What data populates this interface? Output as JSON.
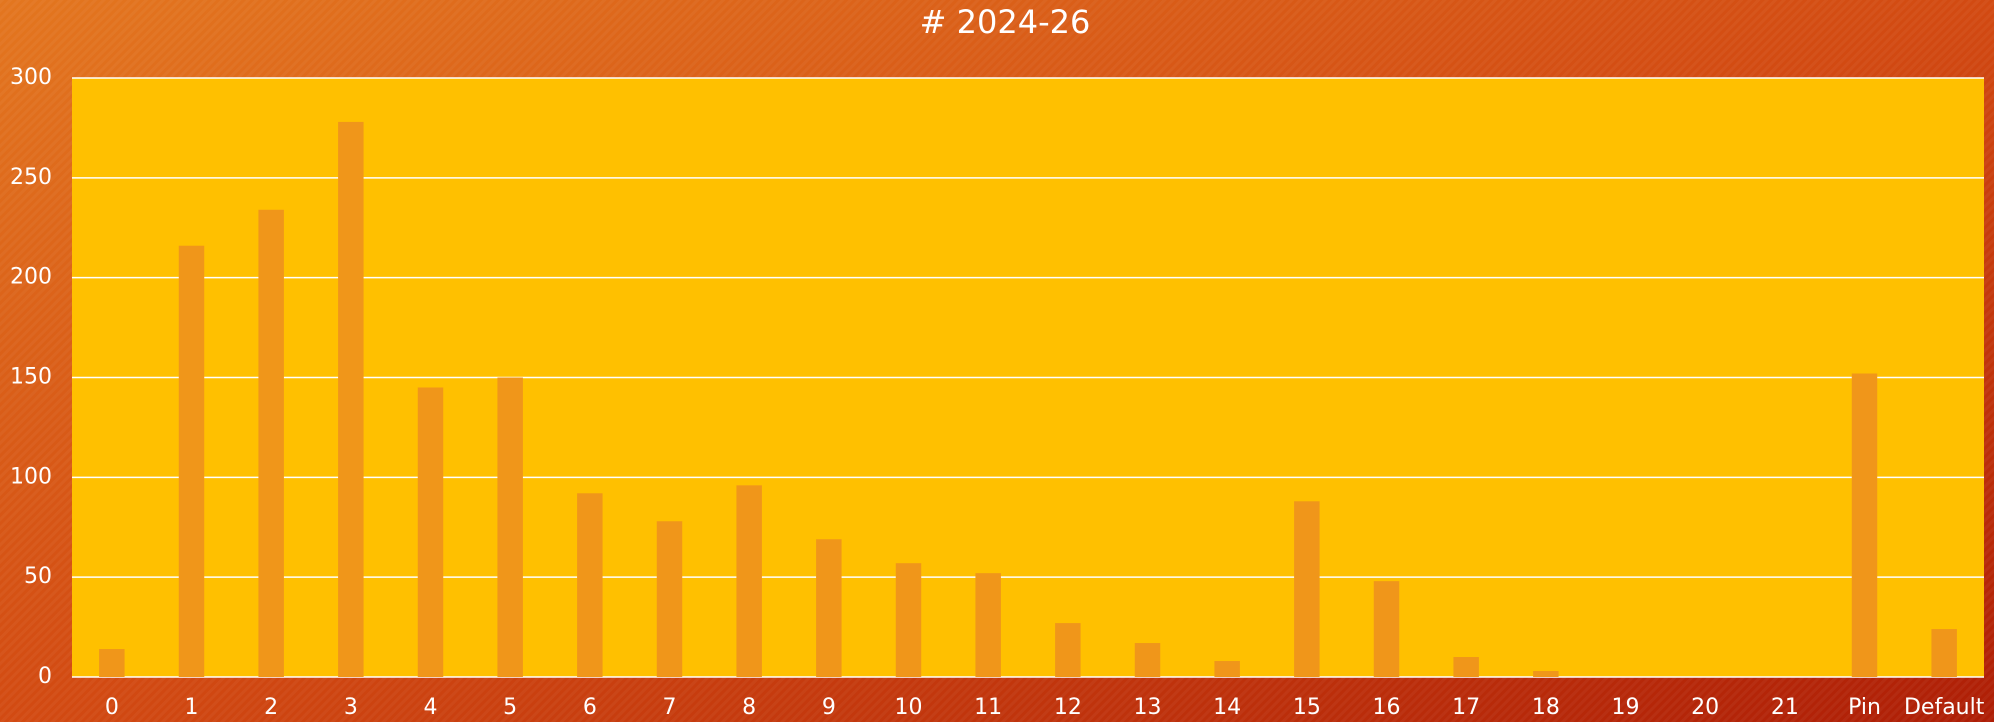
{
  "chart_data": {
    "type": "bar",
    "title": "# 2024-26",
    "categories": [
      "0",
      "1",
      "2",
      "3",
      "4",
      "5",
      "6",
      "7",
      "8",
      "9",
      "10",
      "11",
      "12",
      "13",
      "14",
      "15",
      "16",
      "17",
      "18",
      "19",
      "20",
      "21",
      "Pin",
      "Default"
    ],
    "values": [
      14,
      216,
      234,
      278,
      145,
      150,
      92,
      78,
      96,
      69,
      57,
      52,
      27,
      17,
      8,
      88,
      48,
      10,
      3,
      0,
      0,
      0,
      152,
      24
    ],
    "color": "#f0961a",
    "plot_background": "#ffc000",
    "ylim": [
      0,
      300
    ],
    "yticks": [
      0,
      50,
      100,
      150,
      200,
      250,
      300
    ],
    "grid": true
  }
}
